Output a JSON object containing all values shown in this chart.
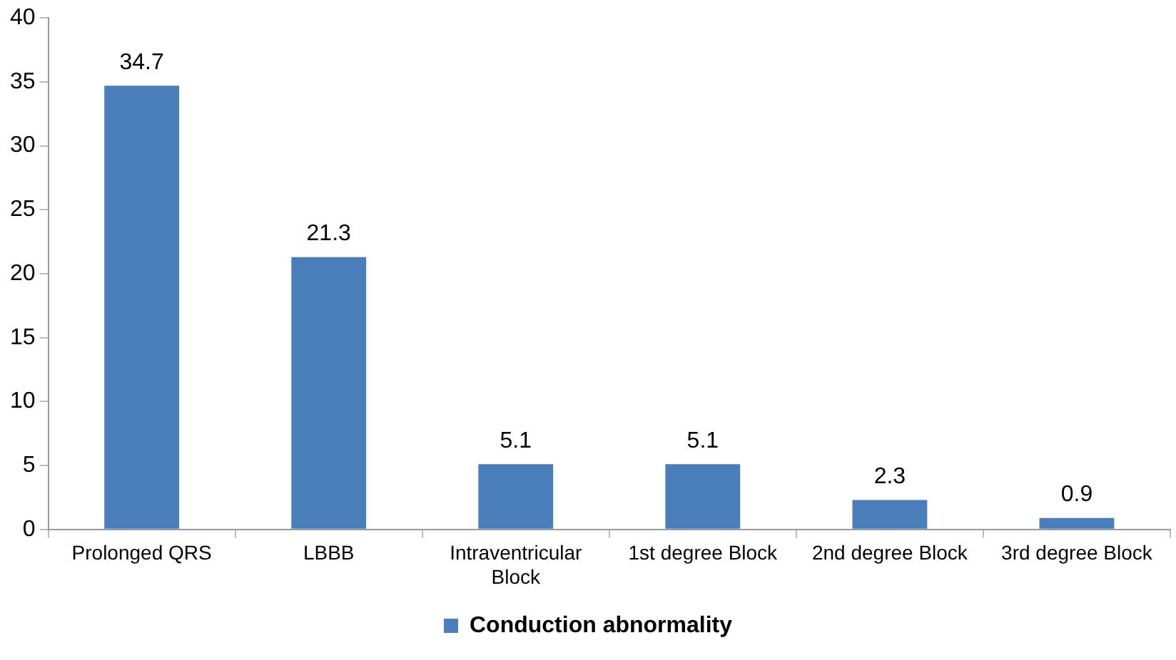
{
  "chart_data": {
    "type": "bar",
    "categories": [
      "Prolonged QRS",
      "LBBB",
      "Intraventricular Block",
      "1st degree Block",
      "2nd degree Block",
      "3rd degree Block"
    ],
    "series": [
      {
        "name": "Conduction abnormality",
        "color": "#4a7ebb",
        "values": [
          34.7,
          21.3,
          5.1,
          5.1,
          2.3,
          0.9
        ]
      }
    ],
    "ylim": [
      0,
      40
    ],
    "yticks": [
      0,
      5,
      10,
      15,
      20,
      25,
      30,
      35,
      40
    ],
    "grid": false,
    "legend": "bottom",
    "data_labels": true
  }
}
